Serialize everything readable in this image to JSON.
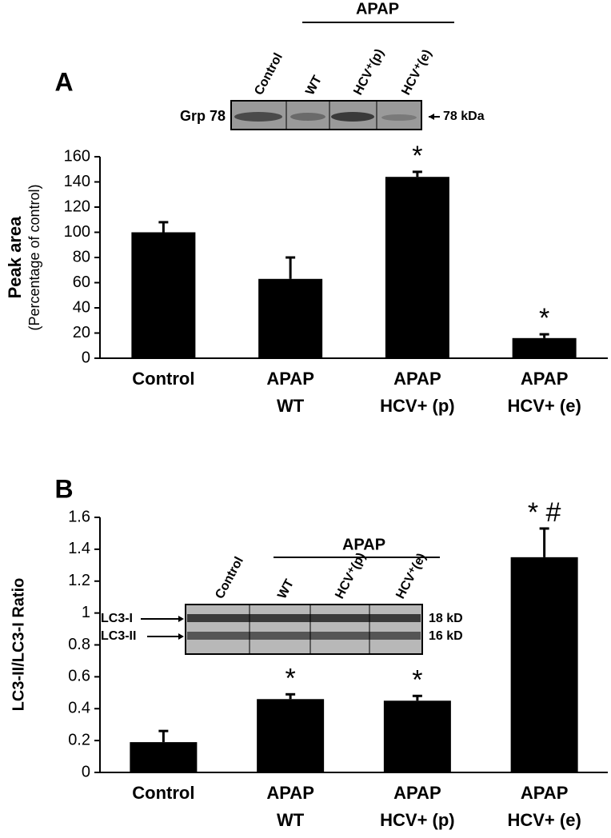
{
  "chart_data": [
    {
      "type": "bar",
      "panel": "A",
      "ylabel": "Peak area",
      "ylabel_sub": "(Percentage of control)",
      "categories": [
        [
          "Control"
        ],
        [
          "APAP",
          "WT"
        ],
        [
          "APAP",
          "HCV+ (p)"
        ],
        [
          "APAP",
          "HCV+ (e)"
        ]
      ],
      "values": [
        100,
        63,
        144,
        16
      ],
      "errors": [
        8,
        17,
        4,
        3
      ],
      "markers": [
        null,
        null,
        "*",
        "*"
      ],
      "color": "#000000",
      "ylim": [
        0,
        160
      ],
      "yticks": [
        0,
        20,
        40,
        60,
        80,
        100,
        120,
        140,
        160
      ],
      "blot": {
        "group_label": "APAP",
        "lanes": [
          "Control",
          "WT",
          "HCV⁺(p)",
          "HCV⁺(e)"
        ],
        "band_labels": [
          "Grp 78"
        ],
        "size_labels": [
          "78 kDa"
        ]
      }
    },
    {
      "type": "bar",
      "panel": "B",
      "ylabel": "LC3-II/LC3-I Ratio",
      "categories": [
        [
          "Control"
        ],
        [
          "APAP",
          "WT"
        ],
        [
          "APAP",
          "HCV+ (p)"
        ],
        [
          "APAP",
          "HCV+ (e)"
        ]
      ],
      "values": [
        0.19,
        0.46,
        0.45,
        1.35
      ],
      "errors": [
        0.07,
        0.03,
        0.03,
        0.18
      ],
      "markers": [
        null,
        "*",
        "*",
        "* #"
      ],
      "color": "#000000",
      "ylim": [
        0,
        1.6
      ],
      "yticks": [
        0,
        0.2,
        0.4,
        0.6,
        0.8,
        1,
        1.2,
        1.4,
        1.6
      ],
      "blot": {
        "group_label": "APAP",
        "lanes": [
          "Control",
          "WT",
          "HCV⁺(p)",
          "HCV⁺(e)"
        ],
        "band_labels": [
          "LC3-I",
          "LC3-II"
        ],
        "size_labels": [
          "18 kD",
          "16 kD"
        ]
      }
    }
  ]
}
